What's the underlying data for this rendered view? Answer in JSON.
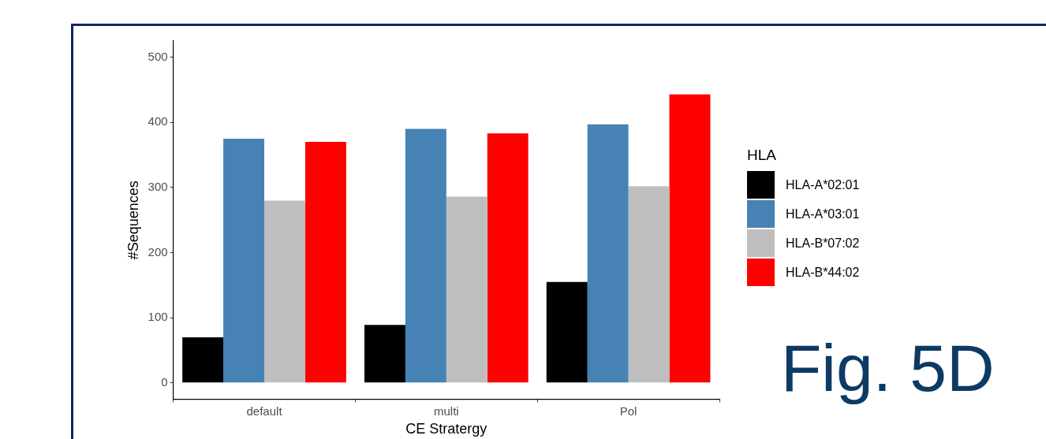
{
  "chart_data": {
    "type": "bar",
    "xlabel": "CE Stratergy",
    "ylabel": "#Sequences",
    "legend_title": "HLA",
    "categories": [
      "default",
      "multi",
      "Pol"
    ],
    "series": [
      {
        "name": "HLA-A*02:01",
        "color": "#000000",
        "values": [
          70,
          89,
          155
        ]
      },
      {
        "name": "HLA-A*03:01",
        "color": "#4682b4",
        "values": [
          375,
          390,
          397
        ]
      },
      {
        "name": "HLA-B*07:02",
        "color": "#bebebe",
        "values": [
          280,
          286,
          302
        ]
      },
      {
        "name": "HLA-B*44:02",
        "color": "#ff0000",
        "values": [
          370,
          383,
          443
        ]
      }
    ],
    "ylim": [
      -25,
      525
    ],
    "yticks": [
      0,
      100,
      200,
      300,
      400,
      500
    ],
    "grid": false,
    "legend": "right",
    "annotations": [
      "Fig. 5D"
    ]
  }
}
